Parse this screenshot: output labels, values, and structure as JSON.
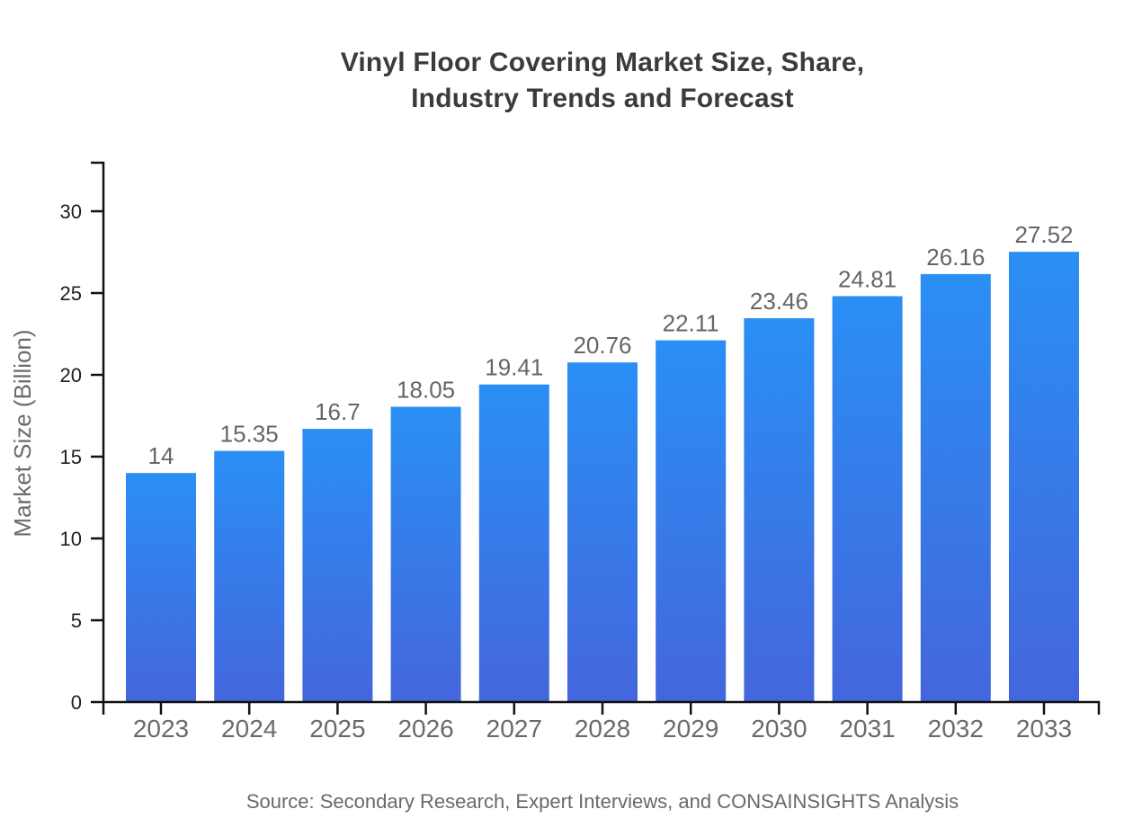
{
  "title": {
    "line1": "Vinyl Floor Covering Market Size, Share,",
    "line2": "Industry Trends and Forecast"
  },
  "source": "Source: Secondary Research, Expert Interviews, and CONSAINSIGHTS Analysis",
  "chart_data": {
    "type": "bar",
    "title": "Vinyl Floor Covering Market Size, Share, Industry Trends and Forecast",
    "categories": [
      "2023",
      "2024",
      "2025",
      "2026",
      "2027",
      "2028",
      "2029",
      "2030",
      "2031",
      "2032",
      "2033"
    ],
    "values": [
      14,
      15.35,
      16.7,
      18.05,
      19.41,
      20.76,
      22.11,
      23.46,
      24.81,
      26.16,
      27.52
    ],
    "value_labels": [
      "14",
      "15.35",
      "16.7",
      "18.05",
      "19.41",
      "20.76",
      "22.11",
      "23.46",
      "24.81",
      "26.16",
      "27.52"
    ],
    "xlabel": "",
    "ylabel": "Market Size (Billion)",
    "ylim": [
      0,
      33
    ],
    "yticks": [
      0,
      5,
      10,
      15,
      20,
      25,
      30
    ],
    "grid": false,
    "legend": "none",
    "source_note": "Source: Secondary Research, Expert Interviews, and CONSAINSIGHTS Analysis",
    "colors": {
      "bar_gradient_top": "#2a8ff5",
      "bar_gradient_bottom": "#4466dc",
      "axis": "#111111",
      "ytick_label": "#1f1f1f",
      "xtick_label": "#6a6a6a",
      "value_label": "#666666",
      "title": "#3b3b3b",
      "source": "#696969",
      "background": "#ffffff"
    }
  }
}
